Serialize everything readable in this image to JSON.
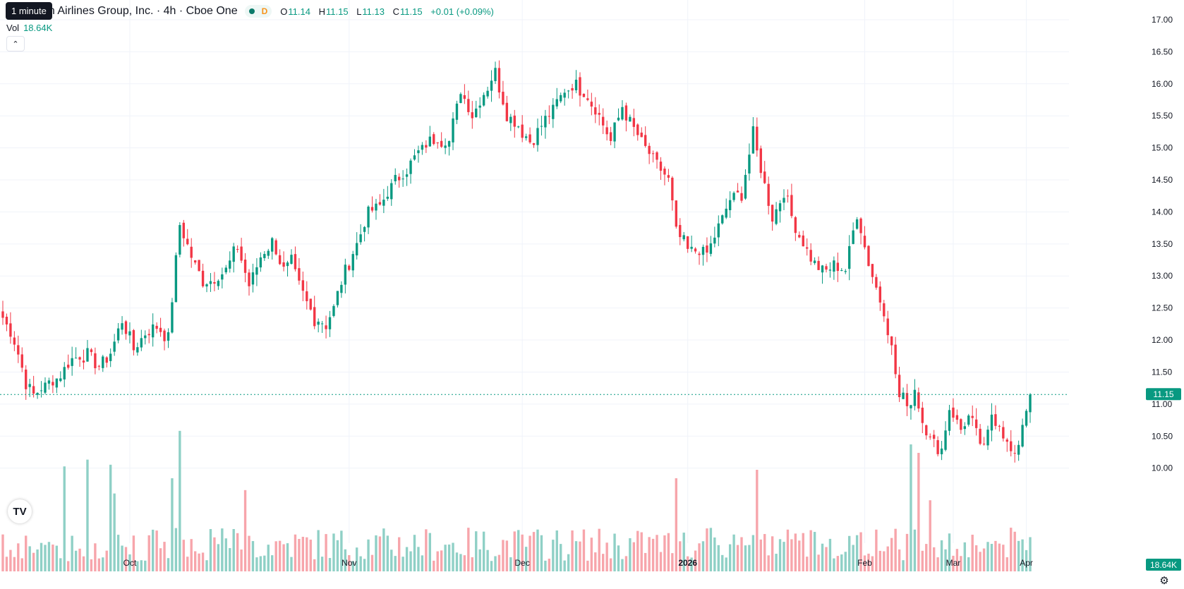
{
  "tooltip": "1 minute",
  "legend": {
    "title": "can Airlines Group, Inc. · 4h · Cboe One",
    "badge": "D",
    "open_key": "O",
    "open": "11.14",
    "high_key": "H",
    "high": "11.15",
    "low_key": "L",
    "low": "11.13",
    "close_key": "C",
    "close": "11.15",
    "change": "+0.01 (+0.09%)"
  },
  "volume_legend": {
    "label": "Vol",
    "value": "18.64K"
  },
  "collapse_icon": "chevron-up-icon",
  "logo": {
    "text": "TV",
    "icon": "tradingview-logo-icon"
  },
  "settings_icon": "gear-icon",
  "colors": {
    "up": "#089981",
    "down": "#f23645",
    "vol_up": "#8fd0c6",
    "vol_down": "#f7a5ab",
    "price_line": "#089981",
    "grid": "#f0f3fa"
  },
  "chart_data": {
    "type": "candlestick",
    "y_axis": {
      "min": 9.6,
      "max": 17.0,
      "ticks": [
        "17.00",
        "16.50",
        "16.00",
        "15.50",
        "15.00",
        "14.50",
        "14.00",
        "13.50",
        "13.00",
        "12.50",
        "12.00",
        "11.50",
        "11.00",
        "10.50",
        "10.00"
      ]
    },
    "x_axis": {
      "labels": [
        "Oct",
        "Nov",
        "Dec",
        "2026",
        "Feb",
        "Mar",
        "Apr"
      ]
    },
    "last_price": "11.15",
    "last_price_value": 11.15,
    "volume_label": "18.64K",
    "grid": true,
    "anchors": [
      [
        0,
        12.35
      ],
      [
        3,
        12.0
      ],
      [
        6,
        11.35
      ],
      [
        8,
        11.15
      ],
      [
        10,
        11.25
      ],
      [
        14,
        11.4
      ],
      [
        18,
        11.7
      ],
      [
        22,
        11.8
      ],
      [
        25,
        11.6
      ],
      [
        28,
        11.8
      ],
      [
        31,
        12.3
      ],
      [
        34,
        11.85
      ],
      [
        37,
        12.1
      ],
      [
        40,
        12.2
      ],
      [
        43,
        12.05
      ],
      [
        46,
        13.8
      ],
      [
        49,
        13.3
      ],
      [
        52,
        12.9
      ],
      [
        55,
        12.95
      ],
      [
        58,
        13.1
      ],
      [
        61,
        13.45
      ],
      [
        64,
        12.85
      ],
      [
        67,
        13.3
      ],
      [
        70,
        13.55
      ],
      [
        73,
        13.1
      ],
      [
        75,
        13.2
      ],
      [
        78,
        12.7
      ],
      [
        81,
        12.35
      ],
      [
        84,
        12.25
      ],
      [
        86,
        12.5
      ],
      [
        89,
        13.1
      ],
      [
        92,
        13.5
      ],
      [
        95,
        14.0
      ],
      [
        98,
        14.1
      ],
      [
        101,
        14.4
      ],
      [
        104,
        14.6
      ],
      [
        107,
        14.85
      ],
      [
        110,
        15.05
      ],
      [
        113,
        15.15
      ],
      [
        116,
        15.1
      ],
      [
        119,
        15.9
      ],
      [
        122,
        15.5
      ],
      [
        125,
        15.85
      ],
      [
        128,
        16.2
      ],
      [
        131,
        15.5
      ],
      [
        134,
        15.35
      ],
      [
        137,
        15.1
      ],
      [
        140,
        15.35
      ],
      [
        143,
        15.6
      ],
      [
        146,
        15.9
      ],
      [
        149,
        16.0
      ],
      [
        152,
        15.8
      ],
      [
        155,
        15.5
      ],
      [
        158,
        15.1
      ],
      [
        161,
        15.65
      ],
      [
        164,
        15.3
      ],
      [
        167,
        15.0
      ],
      [
        170,
        14.75
      ],
      [
        173,
        14.5
      ],
      [
        175,
        13.7
      ],
      [
        178,
        13.4
      ],
      [
        181,
        13.4
      ],
      [
        183,
        13.35
      ],
      [
        186,
        13.75
      ],
      [
        189,
        14.2
      ],
      [
        192,
        14.3
      ],
      [
        195,
        15.2
      ],
      [
        198,
        14.4
      ],
      [
        200,
        13.9
      ],
      [
        203,
        14.3
      ],
      [
        206,
        13.75
      ],
      [
        209,
        13.4
      ],
      [
        211,
        13.2
      ],
      [
        213,
        13.05
      ],
      [
        216,
        13.15
      ],
      [
        219,
        13.1
      ],
      [
        222,
        14.0
      ],
      [
        224,
        13.45
      ],
      [
        226,
        13.0
      ],
      [
        229,
        12.45
      ],
      [
        231,
        11.85
      ],
      [
        233,
        11.1
      ],
      [
        236,
        11.0
      ],
      [
        237,
        11.3
      ],
      [
        238,
        10.95
      ],
      [
        241,
        10.45
      ],
      [
        244,
        10.3
      ],
      [
        246,
        10.95
      ],
      [
        249,
        10.6
      ],
      [
        251,
        10.8
      ],
      [
        253,
        10.55
      ],
      [
        255,
        10.25
      ],
      [
        257,
        10.85
      ],
      [
        259,
        10.7
      ],
      [
        261,
        10.35
      ],
      [
        263,
        10.15
      ],
      [
        265,
        10.7
      ],
      [
        267,
        11.15
      ]
    ],
    "n_candles": 268,
    "vol_spikes": [
      [
        16,
        0.62
      ],
      [
        22,
        0.66
      ],
      [
        28,
        0.63
      ],
      [
        29,
        0.46
      ],
      [
        44,
        0.55
      ],
      [
        46,
        0.83
      ],
      [
        63,
        0.48
      ],
      [
        175,
        0.55
      ],
      [
        196,
        0.6
      ],
      [
        236,
        0.75
      ],
      [
        238,
        0.7
      ],
      [
        241,
        0.42
      ]
    ]
  }
}
